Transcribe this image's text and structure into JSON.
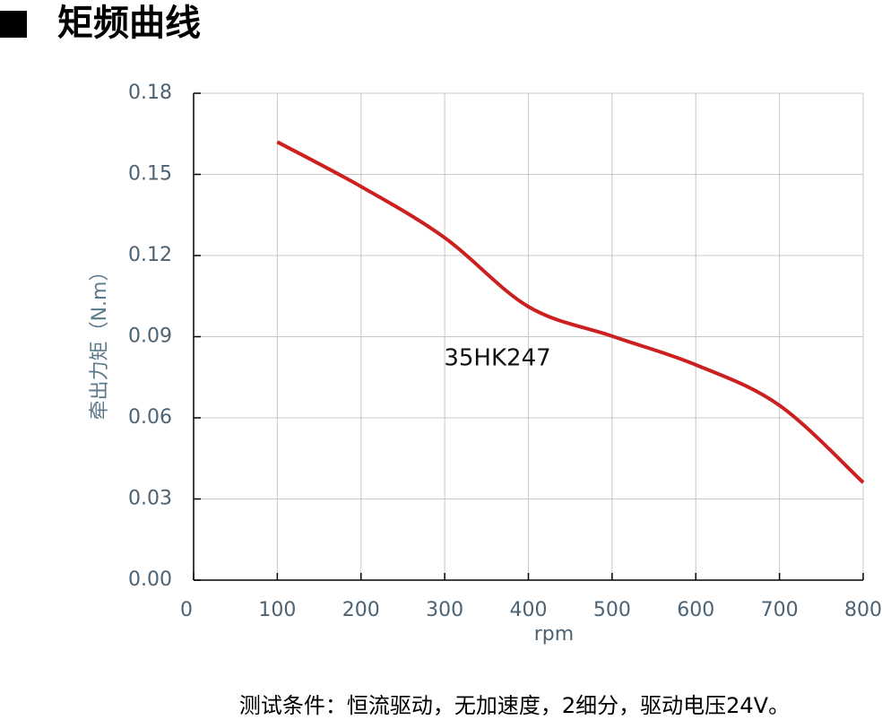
{
  "chart_data": {
    "type": "line",
    "title": "矩频曲线",
    "x": [
      100,
      200,
      300,
      400,
      500,
      600,
      700,
      800
    ],
    "series": [
      {
        "name": "35HK247",
        "color": "#cc1f1f",
        "values": [
          0.162,
          0.1455,
          0.1266,
          0.1011,
          0.0902,
          0.0796,
          0.0646,
          0.0361
        ]
      }
    ],
    "xlim": [
      0,
      800
    ],
    "xticks": [
      0,
      100,
      200,
      300,
      400,
      500,
      600,
      700,
      800
    ],
    "ylim": [
      0,
      0.18
    ],
    "yticks": [
      {
        "value": 0,
        "label": "0.00"
      },
      0.03,
      0.06,
      0.09,
      0.12,
      0.15,
      0.18
    ],
    "xlabel": "rpm",
    "ylabel": "牵出力矩（N.m）",
    "grid": true,
    "caption": "测试条件：恒流驱动，无加速度，2细分，驱动电压24V。"
  }
}
